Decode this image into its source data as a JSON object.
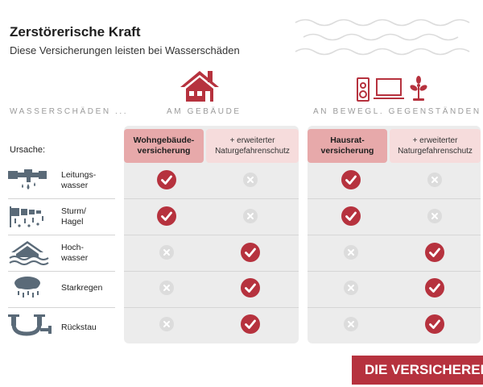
{
  "title": "Zerstörerische Kraft",
  "subtitle": "Diese Versicherungen leisten bei Wasserschäden",
  "section_labels": {
    "damage": "WASSERSCHÄDEN ...",
    "building": "AM GEBÄUDE",
    "movables": "AN BEWEGL. GEGENSTÄNDEN"
  },
  "cause_label": "Ursache:",
  "column_headers": [
    "Wohngebäude-\nversicherung",
    "+ erweiterter\nNaturgefahrenschutz",
    "Hausrat-\nversicherung",
    "+ erweiterter\nNaturgefahrenschutz"
  ],
  "rows": [
    {
      "label": "Leitungs-\nwasser",
      "icon": "water-pipe-icon",
      "coverage": [
        true,
        false,
        true,
        false
      ]
    },
    {
      "label": "Sturm/\nHagel",
      "icon": "storm-hail-icon",
      "coverage": [
        true,
        false,
        true,
        false
      ]
    },
    {
      "label": "Hoch-\nwasser",
      "icon": "flood-house-icon",
      "coverage": [
        false,
        true,
        false,
        true
      ]
    },
    {
      "label": "Starkregen",
      "icon": "rain-cloud-icon",
      "coverage": [
        false,
        true,
        false,
        true
      ]
    },
    {
      "label": "Rückstau",
      "icon": "backflow-pipe-icon",
      "coverage": [
        false,
        true,
        false,
        true
      ]
    }
  ],
  "brand": "DIE VERSICHERER",
  "colors": {
    "accent": "#b6323e",
    "header_main": "#e7a9aa",
    "header_alt": "#f6dcdc",
    "panel": "#ececec"
  }
}
